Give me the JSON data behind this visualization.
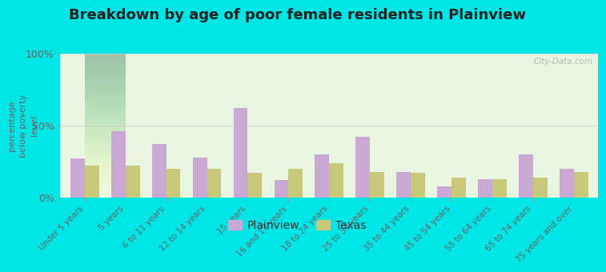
{
  "title": "Breakdown by age of poor female residents in Plainview",
  "ylabel": "percentage\nbelow poverty\nlevel",
  "categories": [
    "Under 5 years",
    "5 years",
    "6 to 11 years",
    "12 to 14 years",
    "15 years",
    "16 and 17 years",
    "18 to 24 years",
    "25 to 34 years",
    "35 to 44 years",
    "45 to 54 years",
    "55 to 64 years",
    "65 to 74 years",
    "75 years and over"
  ],
  "plainview_values": [
    27,
    46,
    37,
    28,
    62,
    12,
    30,
    42,
    18,
    8,
    13,
    30,
    20
  ],
  "texas_values": [
    22,
    22,
    20,
    20,
    17,
    20,
    24,
    18,
    17,
    14,
    13,
    14,
    18
  ],
  "plainview_color": "#c9a8d4",
  "texas_color": "#c8c87a",
  "plot_bg_color": "#e8f5e0",
  "outer_bg_color": "#00e5e5",
  "ylim": [
    0,
    100
  ],
  "yticks": [
    0,
    50,
    100
  ],
  "ytick_labels": [
    "0%",
    "50%",
    "100%"
  ],
  "bar_width": 0.35,
  "title_fontsize": 13,
  "legend_labels": [
    "Plainview",
    "Texas"
  ],
  "watermark": "City-Data.com"
}
